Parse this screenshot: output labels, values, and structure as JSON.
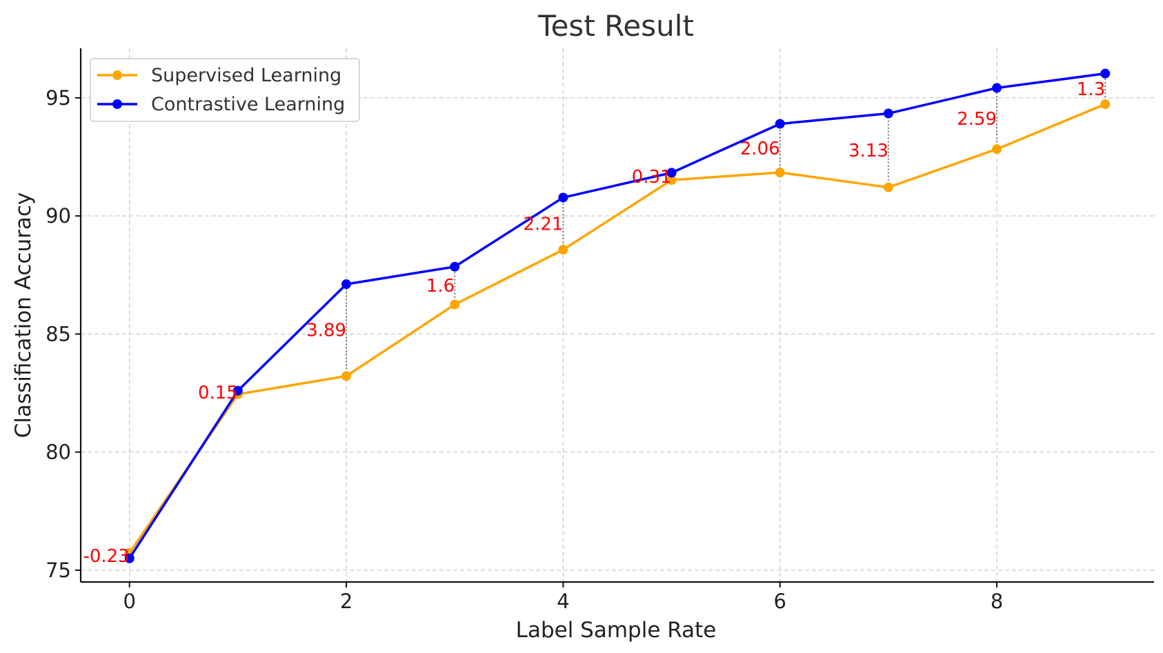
{
  "chart_data": {
    "type": "line",
    "title": "Test Result",
    "xlabel": "Label Sample Rate",
    "ylabel": "Classification Accuracy",
    "x": [
      0,
      1,
      2,
      3,
      4,
      5,
      6,
      7,
      8,
      9
    ],
    "xlim": [
      -0.45,
      9.45
    ],
    "ylim": [
      74.5,
      97.1
    ],
    "xticks": [
      0,
      2,
      4,
      6,
      8
    ],
    "yticks": [
      75,
      80,
      85,
      90,
      95
    ],
    "grid": true,
    "legend_position": "top-left",
    "series": [
      {
        "name": "Supervised Learning",
        "color": "#FFA500",
        "values": [
          75.73,
          82.45,
          83.22,
          86.25,
          88.57,
          91.52,
          91.84,
          91.21,
          92.83,
          94.73
        ]
      },
      {
        "name": "Contrastive Learning",
        "color": "#0000FF",
        "values": [
          75.5,
          82.6,
          87.11,
          87.85,
          90.78,
          91.83,
          93.9,
          94.34,
          95.42,
          96.03
        ]
      }
    ],
    "annotations": {
      "color": "#FF0000",
      "connector_color": "#808080",
      "labels": [
        "-0.23",
        "0.15",
        "3.89",
        "1.6",
        "2.21",
        "0.31",
        "2.06",
        "3.13",
        "2.59",
        "1.3"
      ]
    }
  }
}
